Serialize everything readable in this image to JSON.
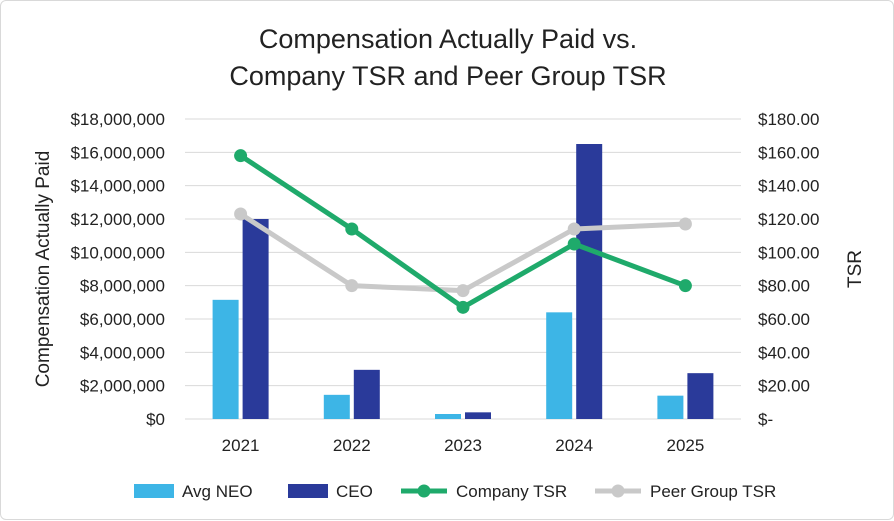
{
  "chart_data": {
    "type": "bar+line",
    "title_lines": [
      "Compensation Actually Paid vs.",
      "Company TSR and Peer Group TSR"
    ],
    "ylabel": "Compensation Actually Paid",
    "y2label": "TSR",
    "categories": [
      "2021",
      "2022",
      "2023",
      "2024",
      "2025"
    ],
    "ylim": [
      0,
      18000000
    ],
    "y2lim": [
      0,
      180
    ],
    "y_ticks": [
      {
        "value": 0,
        "label": "$0"
      },
      {
        "value": 2000000,
        "label": "$2,000,000"
      },
      {
        "value": 4000000,
        "label": "$4,000,000"
      },
      {
        "value": 6000000,
        "label": "$6,000,000"
      },
      {
        "value": 8000000,
        "label": "$8,000,000"
      },
      {
        "value": 10000000,
        "label": "$10,000,000"
      },
      {
        "value": 12000000,
        "label": "$12,000,000"
      },
      {
        "value": 14000000,
        "label": "$14,000,000"
      },
      {
        "value": 16000000,
        "label": "$16,000,000"
      },
      {
        "value": 18000000,
        "label": "$18,000,000"
      }
    ],
    "y2_ticks": [
      {
        "value": 0,
        "label": "$-"
      },
      {
        "value": 20,
        "label": "$20.00"
      },
      {
        "value": 40,
        "label": "$40.00"
      },
      {
        "value": 60,
        "label": "$60.00"
      },
      {
        "value": 80,
        "label": "$80.00"
      },
      {
        "value": 100,
        "label": "$100.00"
      },
      {
        "value": 120,
        "label": "$120.00"
      },
      {
        "value": 140,
        "label": "$140.00"
      },
      {
        "value": 160,
        "label": "$160.00"
      },
      {
        "value": 180,
        "label": "$180.00"
      }
    ],
    "bar_series": [
      {
        "name": "Avg NEO",
        "color": "#3db5e6",
        "values": [
          7150000,
          1450000,
          300000,
          6400000,
          1400000
        ]
      },
      {
        "name": "CEO",
        "color": "#2a3a9a",
        "values": [
          12000000,
          2950000,
          400000,
          16500000,
          2750000
        ]
      }
    ],
    "line_series": [
      {
        "name": "Company TSR",
        "color": "#1faa6b",
        "values": [
          158,
          114,
          67,
          105,
          80
        ]
      },
      {
        "name": "Peer Group TSR",
        "color": "#c9c9c9",
        "values": [
          123,
          80,
          77,
          114,
          117
        ]
      }
    ],
    "legend_position": "bottom"
  }
}
